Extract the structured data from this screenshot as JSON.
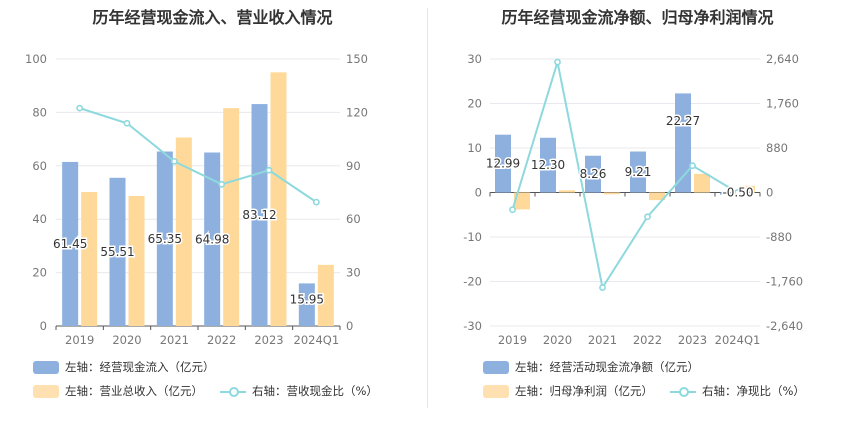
{
  "colors": {
    "bar_primary": "#8eb0df",
    "bar_secondary": "#ffd99a",
    "line": "#8ed9de",
    "axis_text": "#777777",
    "grid": "#e8e8ee"
  },
  "chart_data": [
    {
      "type": "bar",
      "title": "历年经营现金流入、营业收入情况",
      "categories": [
        "2019",
        "2020",
        "2021",
        "2022",
        "2023",
        "2024Q1"
      ],
      "left_axis": {
        "min": 0,
        "max": 100,
        "ticks": [
          "0",
          "20",
          "40",
          "60",
          "80",
          "100"
        ]
      },
      "right_axis": {
        "min": 0,
        "max": 150,
        "ticks": [
          "0",
          "30",
          "60",
          "90",
          "120",
          "150"
        ]
      },
      "series": [
        {
          "name": "左轴：经营现金流入（亿元）",
          "kind": "bar",
          "axis": "left",
          "values": [
            61.45,
            55.51,
            65.35,
            64.98,
            83.12,
            15.95
          ],
          "labels": [
            "61.45",
            "55.51",
            "65.35",
            "64.98",
            "83.12",
            "15.95"
          ]
        },
        {
          "name": "左轴：营业总收入（亿元）",
          "kind": "bar",
          "axis": "left",
          "values": [
            50.2,
            48.7,
            70.6,
            81.6,
            95.0,
            22.9
          ]
        },
        {
          "name": "右轴：营收现金比（%）",
          "kind": "line",
          "axis": "right",
          "values": [
            122.4,
            113.9,
            92.5,
            79.6,
            87.5,
            69.6
          ]
        }
      ]
    },
    {
      "type": "bar",
      "title": "历年经营现金流净额、归母净利润情况",
      "categories": [
        "2019",
        "2020",
        "2021",
        "2022",
        "2023",
        "2024Q1"
      ],
      "left_axis": {
        "min": -30,
        "max": 30,
        "ticks": [
          "-30",
          "-20",
          "-10",
          "0",
          "10",
          "20",
          "30"
        ]
      },
      "right_axis": {
        "min": -2640,
        "max": 2640,
        "ticks": [
          "-2,640",
          "-1,760",
          "-880",
          "0",
          "880",
          "1,760",
          "2,640"
        ]
      },
      "series": [
        {
          "name": "左轴：经营活动现金流净额（亿元）",
          "kind": "bar",
          "axis": "left",
          "values": [
            12.99,
            12.3,
            8.26,
            9.21,
            22.27,
            -0.5
          ],
          "labels": [
            "12.99",
            "12.30",
            "8.26",
            "9.21",
            "22.27",
            "-0.50"
          ]
        },
        {
          "name": "左轴：归母净利润（亿元）",
          "kind": "bar",
          "axis": "left",
          "values": [
            -3.8,
            0.5,
            -0.4,
            -1.7,
            4.2,
            1.5
          ]
        },
        {
          "name": "右轴：净现比（%）",
          "kind": "line",
          "axis": "right",
          "values": [
            -340,
            2580,
            -1880,
            -480,
            530,
            0
          ]
        }
      ]
    }
  ]
}
